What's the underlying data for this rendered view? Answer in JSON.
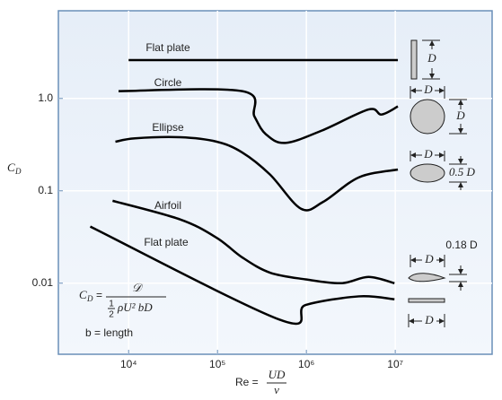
{
  "chart_data": {
    "type": "line",
    "xscale": "log",
    "yscale": "log",
    "grid": true,
    "xlim": [
      1620,
      123000000
    ],
    "ylim": [
      0.0017,
      8.9
    ],
    "xticks": [
      {
        "value": 10000,
        "label": "10⁴"
      },
      {
        "value": 100000,
        "label": "10⁵"
      },
      {
        "value": 1000000,
        "label": "10⁶"
      },
      {
        "value": 10000000,
        "label": "10⁷"
      }
    ],
    "yticks": [
      {
        "value": 1,
        "label": "1.0"
      },
      0.1,
      0.01
    ],
    "ylabel": {
      "symbol": "C",
      "subscript": "D"
    },
    "xlabel": {
      "lhs": "Re =",
      "numerator": "UD",
      "denominator": "ν"
    },
    "series": [
      {
        "name": "Flat plate",
        "color": "#000000",
        "x": [
          10000,
          10700000
        ],
        "values": [
          2.6,
          2.6
        ]
      },
      {
        "name": "Circle",
        "color": "#000000",
        "x": [
          7700,
          190000,
          260000,
          350000,
          580000,
          1500000,
          5000000,
          7000000,
          10700000
        ],
        "values": [
          1.2,
          1.2,
          0.64,
          0.41,
          0.33,
          0.45,
          0.76,
          0.67,
          0.82
        ]
      },
      {
        "name": "Ellipse",
        "color": "#000000",
        "x": [
          7100,
          11800,
          38000,
          98000,
          190000,
          390000,
          870000,
          1550000,
          3900000,
          10700000
        ],
        "values": [
          0.34,
          0.37,
          0.38,
          0.34,
          0.26,
          0.15,
          0.064,
          0.076,
          0.14,
          0.17
        ]
      },
      {
        "name": "Airfoil",
        "color": "#000000",
        "x": [
          6600,
          38000,
          98000,
          190000,
          390000,
          980000,
          2500000,
          5000000,
          9800000
        ],
        "values": [
          0.078,
          0.049,
          0.031,
          0.019,
          0.013,
          0.011,
          0.01,
          0.0117,
          0.01
        ]
      },
      {
        "name": "Flat plate",
        "color": "#000000",
        "x": [
          3700,
          510000,
          980000,
          3900000,
          9800000
        ],
        "values": [
          0.041,
          0.004,
          0.0058,
          0.0072,
          0.0067
        ]
      }
    ],
    "formula": {
      "symbol": "C",
      "subscript": "D",
      "equals": "=",
      "numerator": "𝒟",
      "half_num": "1",
      "half_den": "2",
      "denominator": "ρU² bD",
      "note": "b = length"
    },
    "shape_labels": [
      "D",
      "D",
      "D",
      "D",
      "0.5 D",
      "0.18 D",
      "D",
      "D"
    ]
  }
}
